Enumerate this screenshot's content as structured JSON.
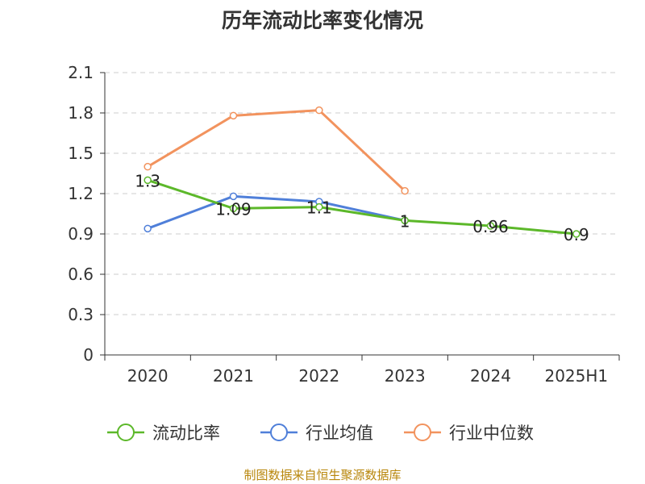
{
  "title": "历年流动比率变化情况",
  "source": "制图数据来自恒生聚源数据库",
  "chart_data": {
    "type": "line",
    "categories": [
      "2020",
      "2021",
      "2022",
      "2023",
      "2024",
      "2025H1"
    ],
    "ylim": [
      0,
      2.1
    ],
    "yticks": [
      "0",
      "0.3",
      "0.6",
      "0.9",
      "1.2",
      "1.5",
      "1.8",
      "2.1"
    ],
    "grid": true,
    "legend_position": "bottom",
    "series": [
      {
        "name": "流动比率",
        "color": "#5cb82a",
        "values": [
          1.3,
          1.09,
          1.1,
          1,
          0.96,
          0.9
        ],
        "labels": [
          "1.3",
          "1.09",
          "1.1",
          "1",
          "0.96",
          "0.9"
        ]
      },
      {
        "name": "行业均值",
        "color": "#4f7fd9",
        "values": [
          0.94,
          1.18,
          1.14,
          1.0,
          null,
          null
        ]
      },
      {
        "name": "行业中位数",
        "color": "#f2935e",
        "values": [
          1.4,
          1.78,
          1.82,
          1.22,
          null,
          null
        ]
      }
    ]
  }
}
